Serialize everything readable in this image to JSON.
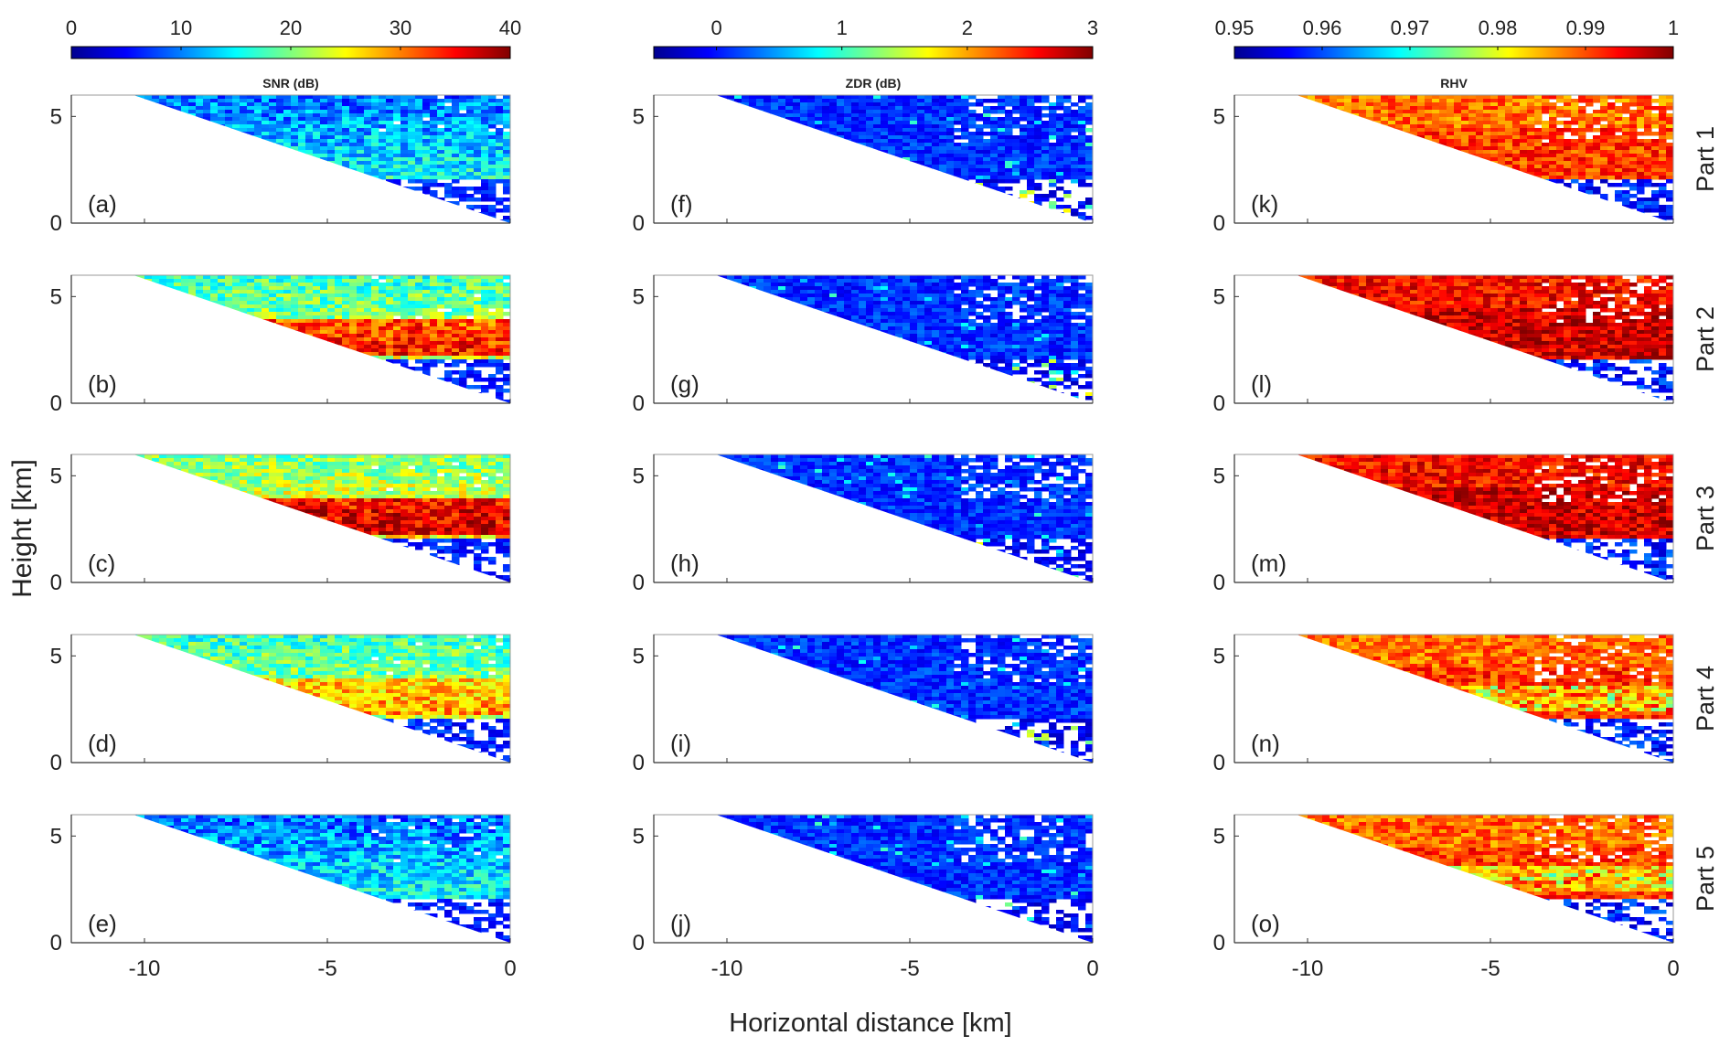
{
  "chart_data": {
    "type": "heatmap",
    "xlabel": "Horizontal distance [km]",
    "ylabel": "Height [km]",
    "xlim": [
      -12,
      0
    ],
    "ylim": [
      0,
      6
    ],
    "xticks": [
      "-10",
      "-5",
      "0"
    ],
    "yticks": [
      "0",
      "5"
    ],
    "grid": false,
    "colorbars": [
      {
        "label": "SNR (dB)",
        "range": [
          0,
          40
        ],
        "ticks": [
          "0",
          "10",
          "20",
          "30",
          "40"
        ],
        "colormap": "jet"
      },
      {
        "label": "ZDR (dB)",
        "range": [
          -0.5,
          3
        ],
        "ticks": [
          "0",
          "1",
          "2",
          "3"
        ],
        "colormap": "jet"
      },
      {
        "label": "RHV",
        "range": [
          0.95,
          1
        ],
        "ticks": [
          "0.95",
          "0.96",
          "0.97",
          "0.98",
          "0.99",
          "1"
        ],
        "colormap": "jet"
      }
    ],
    "rows": [
      "Part 1",
      "Part 2",
      "Part 3",
      "Part 4",
      "Part 5"
    ],
    "panels": [
      {
        "label": "(a)",
        "variable": "SNR",
        "part": 1
      },
      {
        "label": "(b)",
        "variable": "SNR",
        "part": 2
      },
      {
        "label": "(c)",
        "variable": "SNR",
        "part": 3
      },
      {
        "label": "(d)",
        "variable": "SNR",
        "part": 4
      },
      {
        "label": "(e)",
        "variable": "SNR",
        "part": 5
      },
      {
        "label": "(f)",
        "variable": "ZDR",
        "part": 1
      },
      {
        "label": "(g)",
        "variable": "ZDR",
        "part": 2
      },
      {
        "label": "(h)",
        "variable": "ZDR",
        "part": 3
      },
      {
        "label": "(i)",
        "variable": "ZDR",
        "part": 4
      },
      {
        "label": "(j)",
        "variable": "ZDR",
        "part": 5
      },
      {
        "label": "(k)",
        "variable": "RHV",
        "part": 1
      },
      {
        "label": "(l)",
        "variable": "RHV",
        "part": 2
      },
      {
        "label": "(m)",
        "variable": "RHV",
        "part": 3
      },
      {
        "label": "(n)",
        "variable": "RHV",
        "part": 4
      },
      {
        "label": "(o)",
        "variable": "RHV",
        "part": 5
      }
    ],
    "data_domain": {
      "top_height_km": 6,
      "left_edge_km_at_top": -10.3,
      "triangular_region": true
    },
    "colors": {
      "jet_stops": [
        "#00008f",
        "#0000ff",
        "#00ffff",
        "#ffff00",
        "#ff0000",
        "#800000"
      ],
      "axis": "#000000",
      "background": "#ffffff"
    }
  }
}
